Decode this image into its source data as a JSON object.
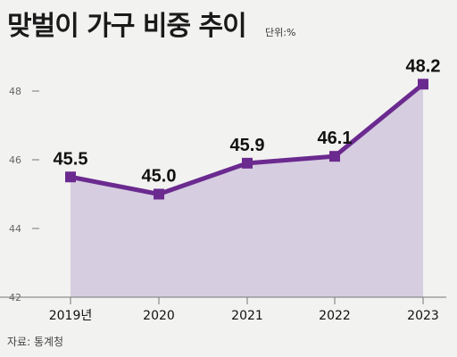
{
  "title": "맞벌이 가구 비중 추이",
  "unit_label": "단위:%",
  "source": "자료: 통계청",
  "colors": {
    "line": "#6b2a8f",
    "area": "#d6cde0",
    "axis": "#777777",
    "background": "#f2f2f0"
  },
  "chart_data": {
    "type": "area",
    "title": "맞벌이 가구 비중 추이",
    "categories": [
      "2019년",
      "2020",
      "2021",
      "2022",
      "2023"
    ],
    "values": [
      45.5,
      45.0,
      45.9,
      46.1,
      48.2
    ],
    "data_labels": [
      "45.5",
      "45.0",
      "45.9",
      "46.1",
      "48.2"
    ],
    "y_ticks": [
      42,
      44,
      46,
      48
    ],
    "ylim": [
      42,
      49
    ],
    "grid": false,
    "legend": "none"
  }
}
